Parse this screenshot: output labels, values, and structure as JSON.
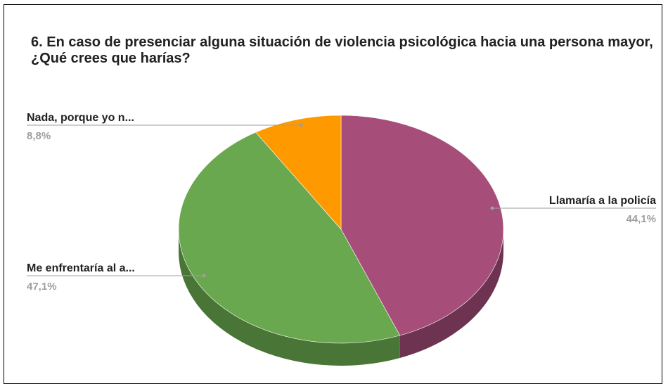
{
  "chart_data": {
    "type": "pie",
    "title": "6. En caso de presenciar alguna situación de violencia psicológica hacia una persona mayor, ¿Qué crees que harías?",
    "slices": [
      {
        "label": "Llamaría a la policía",
        "value": 44.1,
        "value_label": "44,1%",
        "color": "#a64d79",
        "side_color": "#6d3350"
      },
      {
        "label": "Me enfrentaría al a...",
        "value": 47.1,
        "value_label": "47,1%",
        "color": "#6aa84f",
        "side_color": "#497536"
      },
      {
        "label": "Nada, porque yo n...",
        "value": 8.8,
        "value_label": "8,8%",
        "color": "#ff9900",
        "side_color": "#b36b00"
      }
    ],
    "legend": "none",
    "style": "3d"
  }
}
